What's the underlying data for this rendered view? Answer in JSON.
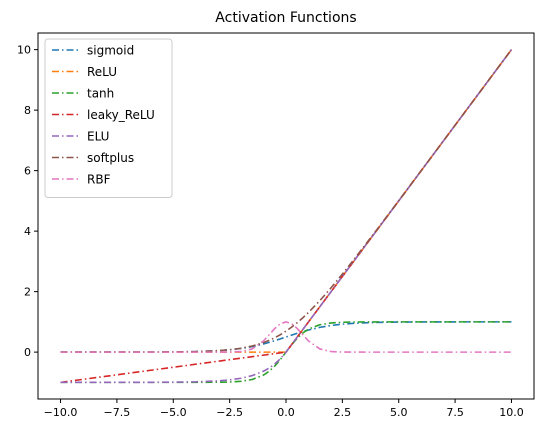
{
  "chart_data": {
    "type": "line",
    "title": "Activation Functions",
    "xlabel": "",
    "ylabel": "",
    "xlim": [
      -11,
      11
    ],
    "ylim": [
      -1.55,
      10.55
    ],
    "x_ticks": [
      -10,
      -7.5,
      -5,
      -2.5,
      0,
      2.5,
      5,
      7.5,
      10
    ],
    "x_tick_labels": [
      "−10.0",
      "−7.5",
      "−5.0",
      "−2.5",
      "0.0",
      "2.5",
      "5.0",
      "7.5",
      "10.0"
    ],
    "y_ticks": [
      0,
      2,
      4,
      6,
      8,
      10
    ],
    "y_tick_labels": [
      "0",
      "2",
      "4",
      "6",
      "8",
      "10"
    ],
    "grid": false,
    "legend_position": "top-left",
    "line_style": "dash-dot",
    "x": [
      -10,
      -9,
      -8,
      -7,
      -6,
      -5,
      -4,
      -3,
      -2.5,
      -2,
      -1.5,
      -1,
      -0.75,
      -0.5,
      -0.25,
      0,
      0.25,
      0.5,
      0.75,
      1,
      1.5,
      2,
      2.5,
      3,
      4,
      5,
      6,
      7,
      8,
      9,
      10
    ],
    "series": [
      {
        "name": "sigmoid",
        "color": "#1f77b4",
        "values": [
          5e-05,
          0.00012,
          0.00034,
          0.00091,
          0.00247,
          0.00669,
          0.01799,
          0.04743,
          0.07586,
          0.1192,
          0.18243,
          0.26894,
          0.32082,
          0.37754,
          0.43782,
          0.5,
          0.56218,
          0.62246,
          0.67918,
          0.73106,
          0.81757,
          0.8808,
          0.92414,
          0.95257,
          0.98201,
          0.99331,
          0.99753,
          0.99909,
          0.99966,
          0.99988,
          0.99995
        ]
      },
      {
        "name": "ReLU",
        "color": "#ff7f0e",
        "values": [
          0,
          0,
          0,
          0,
          0,
          0,
          0,
          0,
          0,
          0,
          0,
          0,
          0,
          0,
          0,
          0,
          0.25,
          0.5,
          0.75,
          1,
          1.5,
          2,
          2.5,
          3,
          4,
          5,
          6,
          7,
          8,
          9,
          10
        ]
      },
      {
        "name": "tanh",
        "color": "#2ca02c",
        "values": [
          -1,
          -1,
          -1,
          -1,
          -0.99999,
          -0.99991,
          -0.99933,
          -0.99505,
          -0.98661,
          -0.96403,
          -0.90515,
          -0.76159,
          -0.63515,
          -0.46212,
          -0.24492,
          0,
          0.24492,
          0.46212,
          0.63515,
          0.76159,
          0.90515,
          0.96403,
          0.98661,
          0.99505,
          0.99933,
          0.99991,
          0.99999,
          1,
          1,
          1,
          1
        ]
      },
      {
        "name": "leaky_ReLU",
        "color": "#d62728",
        "values": [
          -1,
          -0.9,
          -0.8,
          -0.7,
          -0.6,
          -0.5,
          -0.4,
          -0.3,
          -0.25,
          -0.2,
          -0.15,
          -0.1,
          -0.075,
          -0.05,
          -0.025,
          0,
          0.25,
          0.5,
          0.75,
          1,
          1.5,
          2,
          2.5,
          3,
          4,
          5,
          6,
          7,
          8,
          9,
          10
        ]
      },
      {
        "name": "ELU",
        "color": "#9467bd",
        "values": [
          -0.99995,
          -0.99988,
          -0.99966,
          -0.99909,
          -0.99752,
          -0.99326,
          -0.98168,
          -0.95021,
          -0.91792,
          -0.86466,
          -0.77687,
          -0.63212,
          -0.52763,
          -0.39347,
          -0.2212,
          0,
          0.25,
          0.5,
          0.75,
          1,
          1.5,
          2,
          2.5,
          3,
          4,
          5,
          6,
          7,
          8,
          9,
          10
        ]
      },
      {
        "name": "softplus",
        "color": "#8c564b",
        "values": [
          5e-05,
          0.00012,
          0.00034,
          0.00091,
          0.00248,
          0.00672,
          0.01815,
          0.04859,
          0.07889,
          0.12693,
          0.20141,
          0.31326,
          0.38629,
          0.47408,
          0.57593,
          0.69315,
          0.82593,
          0.97408,
          1.13629,
          1.31326,
          1.70141,
          2.12693,
          2.57889,
          3.04859,
          4.01815,
          5.00672,
          6.00248,
          7.00091,
          8.00034,
          9.00012,
          10.00005
        ]
      },
      {
        "name": "RBF",
        "color": "#e377c2",
        "values": [
          0,
          0,
          0,
          0,
          0,
          0,
          0,
          0.00012,
          0.00193,
          0.01832,
          0.1054,
          0.36788,
          0.56978,
          0.7788,
          0.93941,
          1,
          0.93941,
          0.7788,
          0.56978,
          0.36788,
          0.1054,
          0.01832,
          0.00193,
          0.00012,
          0,
          0,
          0,
          0,
          0,
          0,
          0
        ]
      }
    ]
  }
}
